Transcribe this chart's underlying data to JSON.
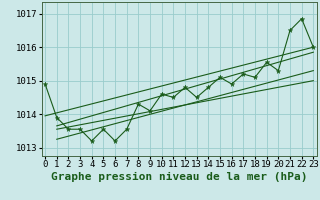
{
  "xlabel": "Graphe pression niveau de la mer (hPa)",
  "x_values": [
    0,
    1,
    2,
    3,
    4,
    5,
    6,
    7,
    8,
    9,
    10,
    11,
    12,
    13,
    14,
    15,
    16,
    17,
    18,
    19,
    20,
    21,
    22,
    23
  ],
  "y_values": [
    1014.9,
    1013.9,
    1013.55,
    1013.55,
    1013.2,
    1013.55,
    1013.2,
    1013.55,
    1014.3,
    1014.1,
    1014.6,
    1014.5,
    1014.8,
    1014.5,
    1014.8,
    1015.1,
    1014.9,
    1015.2,
    1015.1,
    1015.55,
    1015.3,
    1016.5,
    1016.85,
    1016.0
  ],
  "trend_lines": [
    {
      "x0": 0,
      "y0": 1013.95,
      "x1": 23,
      "y1": 1016.0
    },
    {
      "x0": 1,
      "y0": 1013.55,
      "x1": 23,
      "y1": 1015.0
    },
    {
      "x0": 1,
      "y0": 1013.65,
      "x1": 23,
      "y1": 1015.85
    },
    {
      "x0": 1,
      "y0": 1013.25,
      "x1": 23,
      "y1": 1015.3
    }
  ],
  "ylim_min": 1012.75,
  "ylim_max": 1017.35,
  "yticks": [
    1013,
    1014,
    1015,
    1016,
    1017
  ],
  "xlim_min": -0.3,
  "xlim_max": 23.3,
  "bg_color": "#cce8e8",
  "grid_color": "#99cccc",
  "line_color": "#1a5c1a",
  "xlabel_fontsize": 8,
  "tick_fontsize": 6.5
}
